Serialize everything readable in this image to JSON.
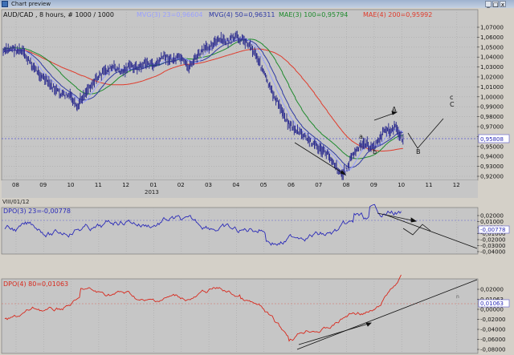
{
  "window": {
    "title": "Chart preview",
    "minimize": "_",
    "maximize": "□",
    "close": "x"
  },
  "main_header": {
    "symbol": "AUD/CAD , 8 hours, # 1000 / 1000",
    "ind1": "MVG(3) 23=0,96604",
    "ind2": "MVG(4) 50=0,96311",
    "ind3": "MAE(3) 100=0,95794",
    "ind4": "MAE(4) 200=0,95992"
  },
  "colors": {
    "bg": "#c6c6c6",
    "price": "#2f2f8f",
    "mvg3": "#9aa0ff",
    "mvg4": "#2f3aa6",
    "mae3": "#1d8a2c",
    "mae4": "#e03b2b",
    "dpo3": "#2a2ab8",
    "dpo4": "#d8281c",
    "grid": "#a8a8a8"
  },
  "price_axis": [
    "1,07000",
    "1,06000",
    "1,05000",
    "1,04000",
    "1,03000",
    "1,02000",
    "1,01000",
    "1,00000",
    "0,99000",
    "0,98000",
    "0,97000",
    "0,96000",
    "0,95000",
    "0,94000",
    "0,93000",
    "0,92000"
  ],
  "price_last": "0,95808",
  "time_axis": [
    "08",
    "09",
    "10",
    "11",
    "12",
    "01",
    "02",
    "03",
    "04",
    "05",
    "06",
    "07",
    "08",
    "09",
    "10",
    "11",
    "12"
  ],
  "year_label": "2013",
  "date_label": "VIII/01/12",
  "annotations": {
    "A": "A",
    "B": "B",
    "C": "C",
    "c": "c",
    "a": "a",
    "b": "b"
  },
  "dpo3_panel": {
    "header": "DPO(3) 23=-0,00778",
    "axis": [
      "0,02000",
      "0,01000",
      "0,00000",
      "-0,01000",
      "-0,02000",
      "-0,03000",
      "-0,04000"
    ],
    "last": "-0,00778"
  },
  "dpo4_panel": {
    "header": "DPO(4) 80=0,01063",
    "axis": [
      "0,02000",
      "0,01063",
      "0,00000",
      "-0,02000",
      "-0,04000",
      "-0,06000",
      "-0,08000"
    ],
    "last": "0,01063",
    "marker": "n"
  }
}
